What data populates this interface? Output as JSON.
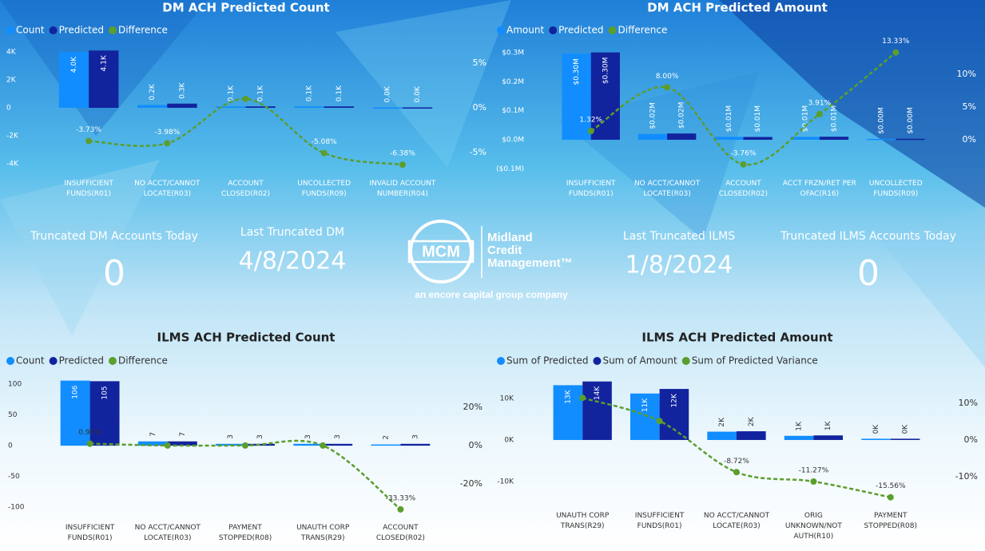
{
  "chart_data": [
    {
      "type": "combo",
      "title": "DM ACH Predicted Count",
      "categories": [
        "INSUFFICIENT FUNDS(R01)",
        "NO ACCT/CANNOT LOCATE(R03)",
        "ACCOUNT CLOSED(R02)",
        "UNCOLLECTED FUNDS(R09)",
        "INVALID ACCOUNT NUMBER(R04)"
      ],
      "series": [
        {
          "name": "Count",
          "color": "#118DFF",
          "values": [
            4000,
            200,
            100,
            100,
            30
          ],
          "value_labels": [
            "4.0K",
            "0.2K",
            "0.1K",
            "0.1K",
            "0.0K"
          ]
        },
        {
          "name": "Predicted",
          "color": "#12239E",
          "values": [
            4100,
            300,
            100,
            100,
            30
          ],
          "value_labels": [
            "4.1K",
            "0.3K",
            "0.1K",
            "0.1K",
            "0.0K"
          ]
        },
        {
          "name": "Difference",
          "color": "#5B9E2D",
          "axis": "y2",
          "values": [
            -3.73,
            -3.98,
            1,
            -5.08,
            -6.38
          ],
          "value_labels": [
            "-3.73%",
            "-3.98%",
            null,
            "-5.08%",
            "-6.38%"
          ]
        }
      ],
      "ylim": [
        -4400,
        4400
      ],
      "yticks": [
        {
          "value": 4000,
          "label": "4K"
        },
        {
          "value": 2000,
          "label": "2K"
        },
        0,
        {
          "value": -2000,
          "label": "-2K"
        },
        {
          "value": -4000,
          "label": "-4K"
        }
      ],
      "y2lim": [
        -6.9,
        6.9
      ],
      "y2ticks": [
        {
          "value": 5,
          "label": "5%"
        },
        {
          "value": 0,
          "label": "0%"
        },
        {
          "value": -5,
          "label": "-5%"
        }
      ]
    },
    {
      "type": "combo",
      "title": "DM ACH Predicted Amount",
      "categories": [
        "INSUFFICIENT FUNDS(R01)",
        "NO ACCT/CANNOT LOCATE(R03)",
        "ACCOUNT CLOSED(R02)",
        "ACCT FRZN/RET PER OFAC(R16)",
        "UNCOLLECTED FUNDS(R09)"
      ],
      "series": [
        {
          "name": "Amount",
          "color": "#118DFF",
          "values": [
            297000,
            20000,
            10000,
            10000,
            3000
          ],
          "value_labels": [
            "$0.30M",
            "$0.02M",
            "$0.01M",
            "$0.01M",
            "$0.00M"
          ]
        },
        {
          "name": "Predicted",
          "color": "#12239E",
          "values": [
            301000,
            21600,
            9600,
            10400,
            3400
          ],
          "value_labels": [
            "$0.30M",
            "$0.02M",
            "$0.01M",
            "$0.01M",
            "$0.00M"
          ]
        },
        {
          "name": "Difference",
          "color": "#5B9E2D",
          "axis": "y2",
          "values": [
            1.32,
            8.0,
            -3.76,
            3.91,
            13.33
          ],
          "value_labels": [
            "1.32%",
            "8.00%",
            "-3.76%",
            "3.91%",
            "13.33%"
          ]
        }
      ],
      "ylim": [
        -110000,
        322000
      ],
      "yticks": [
        {
          "value": 300000,
          "label": "$0.3M"
        },
        {
          "value": 200000,
          "label": "$0.2M"
        },
        {
          "value": 100000,
          "label": "$0.1M"
        },
        {
          "value": 0,
          "label": "$0.0M"
        },
        {
          "value": -100000,
          "label": "($0.1M)"
        }
      ],
      "y2lim": [
        -4.88,
        14.27
      ],
      "y2ticks": [
        {
          "value": 10,
          "label": "10%"
        },
        {
          "value": 5,
          "label": "5%"
        },
        {
          "value": 0,
          "label": "0%"
        }
      ]
    },
    {
      "type": "combo",
      "title": "ILMS ACH Predicted Count",
      "categories": [
        "INSUFFICIENT FUNDS(R01)",
        "NO ACCT/CANNOT LOCATE(R03)",
        "PAYMENT STOPPED(R08)",
        "UNAUTH CORP TRANS(R29)",
        "ACCOUNT CLOSED(R02)"
      ],
      "series": [
        {
          "name": "Count",
          "color": "#118DFF",
          "values": [
            106,
            7,
            3,
            3,
            2
          ]
        },
        {
          "name": "Predicted",
          "color": "#12239E",
          "values": [
            105,
            7,
            3,
            3,
            3
          ]
        },
        {
          "name": "Difference",
          "color": "#5B9E2D",
          "axis": "y2",
          "values": [
            0.95,
            0,
            0,
            0,
            -33.33
          ],
          "value_labels": [
            "0.95%",
            null,
            null,
            null,
            "-33.33%"
          ]
        }
      ],
      "ylim": [
        -113,
        112
      ],
      "yticks": [
        100,
        50,
        0,
        -50,
        -100
      ],
      "y2lim": [
        -36.3,
        35.8
      ],
      "y2ticks": [
        {
          "value": 20,
          "label": "20%"
        },
        {
          "value": 0,
          "label": "0%"
        },
        {
          "value": -20,
          "label": "-20%"
        }
      ]
    },
    {
      "type": "combo",
      "title": "ILMS ACH Predicted Amount",
      "categories": [
        "UNAUTH CORP TRANS(R29)",
        "INSUFFICIENT FUNDS(R01)",
        "NO ACCT/CANNOT LOCATE(R03)",
        "ORIG UNKNOWN/NOT AUTH(R10)",
        "PAYMENT STOPPED(R08)"
      ],
      "series": [
        {
          "name": "Sum of Predicted",
          "color": "#118DFF",
          "values": [
            13200,
            11200,
            2000,
            1000,
            300
          ],
          "value_labels": [
            "13K",
            "11K",
            "2K",
            "1K",
            "0K"
          ]
        },
        {
          "name": "Sum of Amount",
          "color": "#12239E",
          "values": [
            14100,
            12300,
            2100,
            1100,
            300
          ],
          "value_labels": [
            "14K",
            "12K",
            "2K",
            "1K",
            "0K"
          ]
        },
        {
          "name": "Sum of Predicted Variance",
          "color": "#5B9E2D",
          "axis": "y2",
          "values": [
            11.5,
            5.2,
            -8.72,
            -11.27,
            -15.56
          ],
          "value_labels": [
            null,
            null,
            "-8.72%",
            "-11.27%",
            "-15.56%"
          ]
        }
      ],
      "ylim": [
        -18100,
        15200
      ],
      "yticks": [
        {
          "value": 10000,
          "label": "10K"
        },
        {
          "value": 0,
          "label": "0K"
        },
        {
          "value": -10000,
          "label": "-10K"
        }
      ],
      "y2lim": [
        -20.4,
        17.2
      ],
      "y2ticks": [
        {
          "value": 10,
          "label": "10%"
        },
        {
          "value": 0,
          "label": "0%"
        },
        {
          "value": -10,
          "label": "-10%"
        }
      ]
    }
  ],
  "kpis": [
    {
      "label": "Truncated DM Accounts Today",
      "value": 0
    },
    {
      "label": "Last Truncated DM",
      "value": "4/8/2024"
    },
    {
      "label": "Last Truncated ILMS",
      "value": "1/8/2024"
    },
    {
      "label": "Truncated ILMS Accounts Today",
      "value": 0
    }
  ],
  "logo": {
    "mark": "MCM",
    "name": "Midland Credit Management™",
    "tagline": "an encore capital group company"
  }
}
